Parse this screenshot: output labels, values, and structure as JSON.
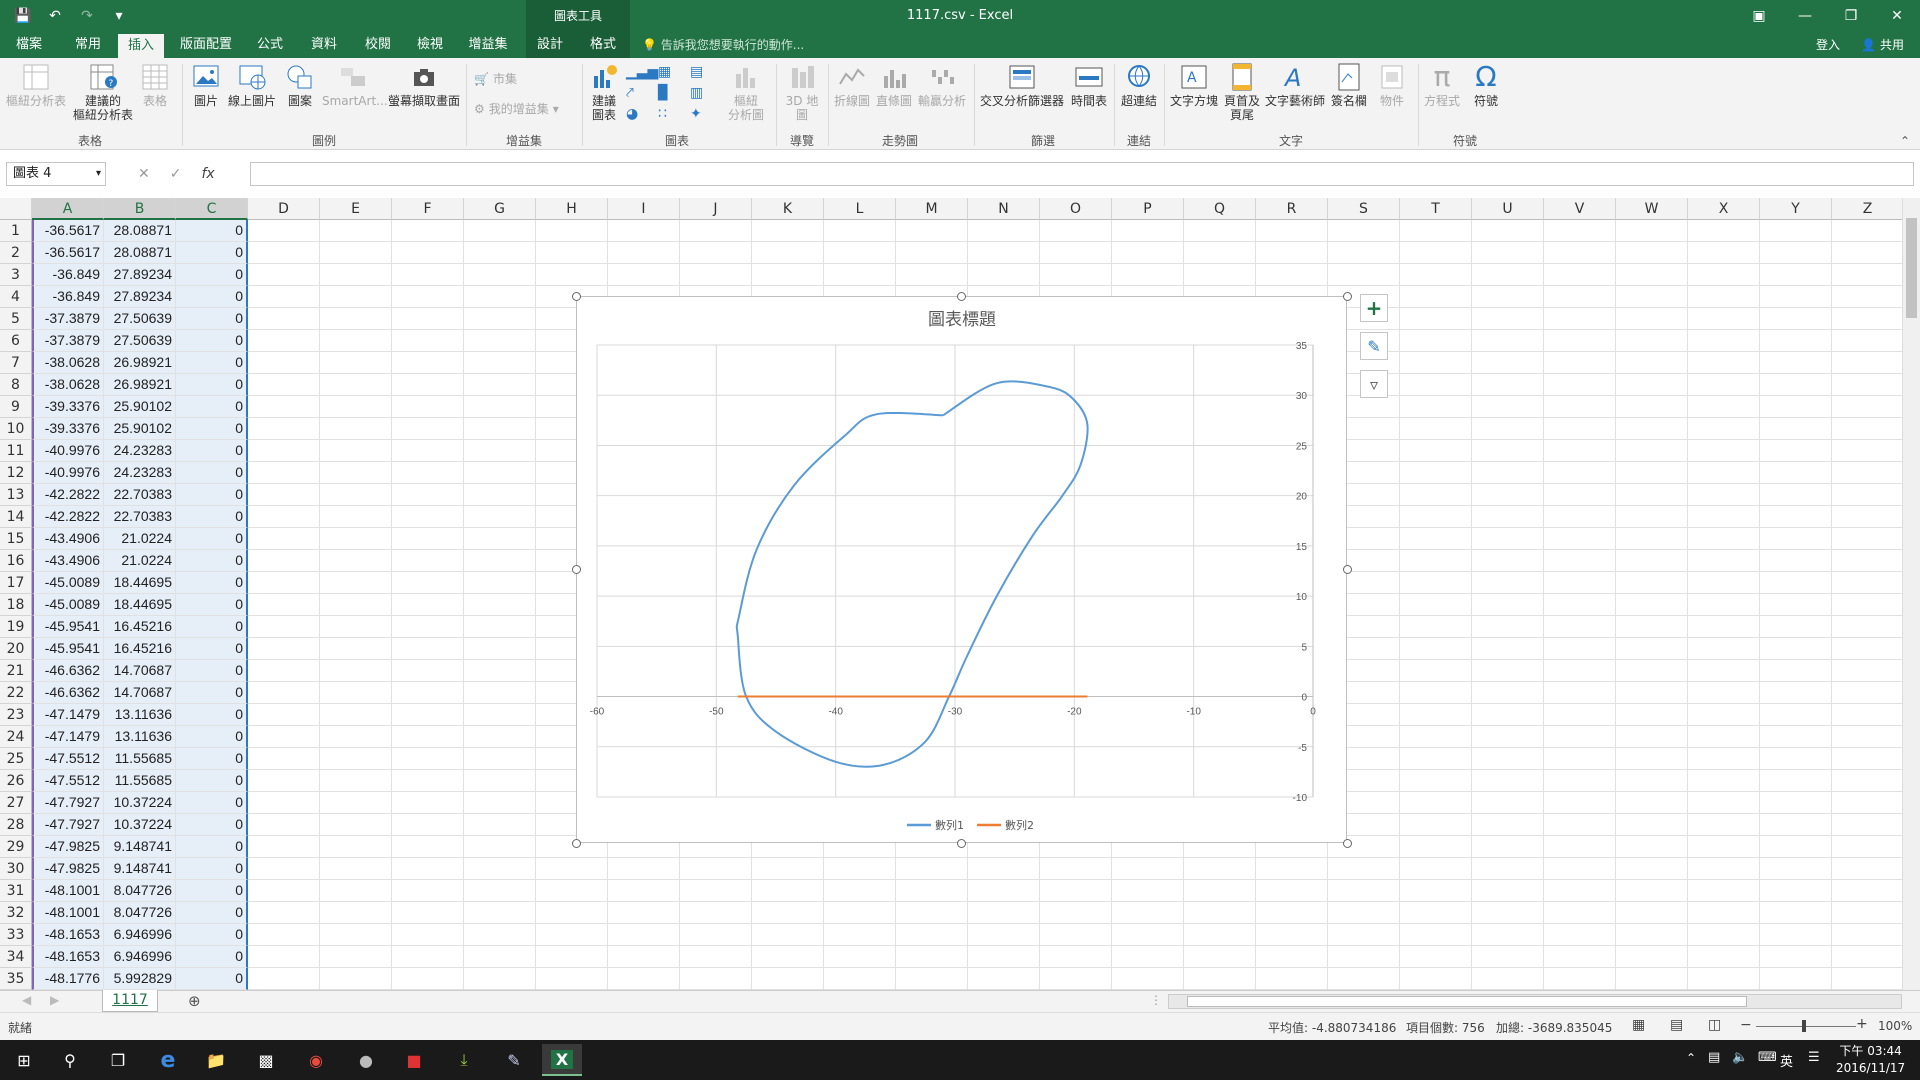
{
  "app": {
    "title": "1117.csv - Excel",
    "context_tool": "圖表工具"
  },
  "tabs": [
    "檔案",
    "常用",
    "插入",
    "版面配置",
    "公式",
    "資料",
    "校閱",
    "檢視",
    "增益集",
    "設計",
    "格式"
  ],
  "active_tab": "插入",
  "tell_me": "告訴我您想要執行的動作...",
  "signin": "登入",
  "share": "共用",
  "ribbon": {
    "groups": {
      "tables": "表格",
      "illustrations": "圖例",
      "addins": "增益集",
      "charts": "圖表",
      "tours": "導覽",
      "sparklines": "走勢圖",
      "filters": "篩選",
      "links": "連結",
      "text": "文字",
      "symbols": "符號"
    },
    "buttons": {
      "pivot": "樞紐分析表",
      "rec_pivot_1": "建議的",
      "rec_pivot_2": "樞紐分析表",
      "table": "表格",
      "pictures": "圖片",
      "online_pictures": "線上圖片",
      "shapes": "圖案",
      "smartart": "SmartArt...",
      "screenshot": "螢幕擷取畫面",
      "store": "市集",
      "my_addins": "我的增益集",
      "rec_charts_1": "建議",
      "rec_charts_2": "圖表",
      "pivot_chart_1": "樞紐",
      "pivot_chart_2": "分析圖",
      "map3d_1": "3D 地",
      "map3d_2": "圖",
      "line": "折線圖",
      "column": "直條圖",
      "winloss": "輸贏分析",
      "slicer": "交叉分析篩選器",
      "timeline": "時間表",
      "hyperlink": "超連結",
      "textbox": "文字方塊",
      "header_1": "頁首及",
      "header_2": "頁尾",
      "wordart": "文字藝術師",
      "signature": "簽名欄",
      "object": "物件",
      "equation": "方程式",
      "symbol": "符號"
    }
  },
  "namebox": "圖表 4",
  "columns": [
    "A",
    "B",
    "C",
    "D",
    "E",
    "F",
    "G",
    "H",
    "I",
    "J",
    "K",
    "L",
    "M",
    "N",
    "O",
    "P",
    "Q",
    "R",
    "S",
    "T",
    "U",
    "V",
    "W",
    "X",
    "Y",
    "Z"
  ],
  "rows": [
    [
      "-36.5617",
      "28.08871",
      "0"
    ],
    [
      "-36.5617",
      "28.08871",
      "0"
    ],
    [
      "-36.849",
      "27.89234",
      "0"
    ],
    [
      "-36.849",
      "27.89234",
      "0"
    ],
    [
      "-37.3879",
      "27.50639",
      "0"
    ],
    [
      "-37.3879",
      "27.50639",
      "0"
    ],
    [
      "-38.0628",
      "26.98921",
      "0"
    ],
    [
      "-38.0628",
      "26.98921",
      "0"
    ],
    [
      "-39.3376",
      "25.90102",
      "0"
    ],
    [
      "-39.3376",
      "25.90102",
      "0"
    ],
    [
      "-40.9976",
      "24.23283",
      "0"
    ],
    [
      "-40.9976",
      "24.23283",
      "0"
    ],
    [
      "-42.2822",
      "22.70383",
      "0"
    ],
    [
      "-42.2822",
      "22.70383",
      "0"
    ],
    [
      "-43.4906",
      "21.0224",
      "0"
    ],
    [
      "-43.4906",
      "21.0224",
      "0"
    ],
    [
      "-45.0089",
      "18.44695",
      "0"
    ],
    [
      "-45.0089",
      "18.44695",
      "0"
    ],
    [
      "-45.9541",
      "16.45216",
      "0"
    ],
    [
      "-45.9541",
      "16.45216",
      "0"
    ],
    [
      "-46.6362",
      "14.70687",
      "0"
    ],
    [
      "-46.6362",
      "14.70687",
      "0"
    ],
    [
      "-47.1479",
      "13.11636",
      "0"
    ],
    [
      "-47.1479",
      "13.11636",
      "0"
    ],
    [
      "-47.5512",
      "11.55685",
      "0"
    ],
    [
      "-47.5512",
      "11.55685",
      "0"
    ],
    [
      "-47.7927",
      "10.37224",
      "0"
    ],
    [
      "-47.7927",
      "10.37224",
      "0"
    ],
    [
      "-47.9825",
      "9.148741",
      "0"
    ],
    [
      "-47.9825",
      "9.148741",
      "0"
    ],
    [
      "-48.1001",
      "8.047726",
      "0"
    ],
    [
      "-48.1001",
      "8.047726",
      "0"
    ],
    [
      "-48.1653",
      "6.946996",
      "0"
    ],
    [
      "-48.1653",
      "6.946996",
      "0"
    ],
    [
      "-48.1776",
      "5.992829",
      "0"
    ]
  ],
  "sheet_tab": "1117",
  "status": {
    "ready": "就緒",
    "average": "平均值: -4.880734186",
    "count": "項目個數: 756",
    "sum": "加總: -3689.835045",
    "zoom": "100%"
  },
  "taskbar": {
    "time": "下午 03:44",
    "date": "2016/11/17",
    "ime": "英"
  },
  "chart_data": {
    "type": "scatter",
    "title": "圖表標題",
    "xlim": [
      -60,
      0
    ],
    "ylim": [
      -10,
      35
    ],
    "x_ticks": [
      -60,
      -50,
      -40,
      -30,
      -20,
      -10,
      0
    ],
    "y_ticks": [
      -10,
      -5,
      0,
      5,
      10,
      15,
      20,
      25,
      30,
      35
    ],
    "grid": true,
    "legend_position": "bottom",
    "series": [
      {
        "name": "數列1",
        "color": "#5b9bd5",
        "points": [
          [
            -31,
            28
          ],
          [
            -36.6,
            28.1
          ],
          [
            -39.3,
            25.9
          ],
          [
            -43.5,
            21
          ],
          [
            -46.6,
            14.7
          ],
          [
            -48.1,
            8
          ],
          [
            -48.2,
            6
          ],
          [
            -47.5,
            0
          ],
          [
            -45,
            -3.5
          ],
          [
            -40,
            -6.5
          ],
          [
            -36,
            -6.8
          ],
          [
            -32.5,
            -4.5
          ],
          [
            -30.5,
            0
          ],
          [
            -29,
            4
          ],
          [
            -26.5,
            10
          ],
          [
            -23.5,
            16
          ],
          [
            -21,
            20
          ],
          [
            -19.5,
            23
          ],
          [
            -18.9,
            27
          ],
          [
            -20,
            29.5
          ],
          [
            -22,
            30.8
          ],
          [
            -26.5,
            31.2
          ],
          [
            -31,
            28
          ]
        ],
        "smooth": true
      },
      {
        "name": "數列2",
        "color": "#ed7d31",
        "points": [
          [
            -48.2,
            0
          ],
          [
            -18.9,
            0
          ]
        ]
      }
    ]
  }
}
